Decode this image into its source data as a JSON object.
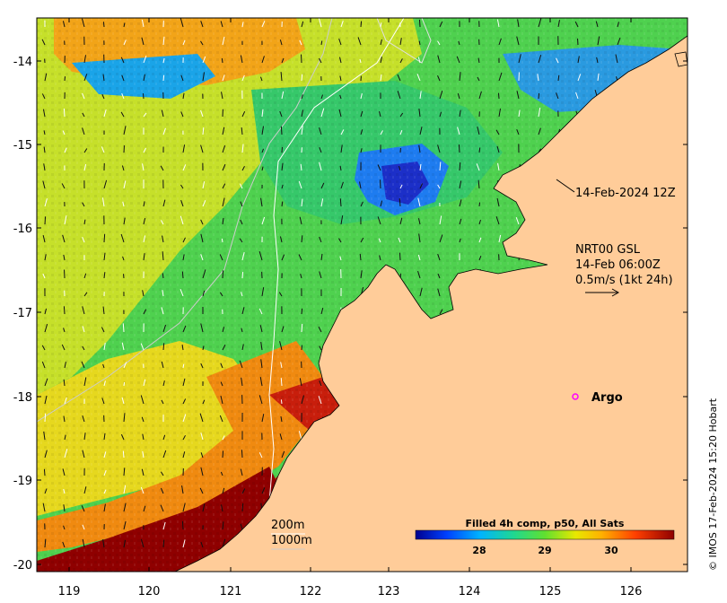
{
  "map": {
    "x_ticks": [
      "119",
      "120",
      "121",
      "122",
      "123",
      "124",
      "125",
      "126"
    ],
    "y_ticks": [
      "-14",
      "-15",
      "-16",
      "-17",
      "-18",
      "-19",
      "-20"
    ],
    "lon_range": [
      118.6,
      126.8
    ],
    "lat_range": [
      -20.1,
      -13.5
    ]
  },
  "annotations": {
    "sst_time": "14-Feb-2024 12Z",
    "current_product": "NRT00 GSL",
    "current_time": "14-Feb 06:00Z",
    "current_scale": "0.5m/s (1kt 24h)",
    "argo_label": "Argo",
    "contour_200": "200m",
    "contour_1000": "1000m",
    "credit": "© IMOS 17-Feb-2024 15:20 Hobart"
  },
  "colorbar": {
    "title": "Filled 4h comp, p50, All Sats",
    "ticks": [
      "28",
      "29",
      "30"
    ],
    "colors": [
      "#00008f",
      "#0050ff",
      "#00c8ff",
      "#30e070",
      "#a0e020",
      "#ffe000",
      "#ff9000",
      "#ff2000",
      "#8f0000"
    ]
  },
  "colors": {
    "land": "#ffcc99",
    "argo": "#ff00ff"
  }
}
